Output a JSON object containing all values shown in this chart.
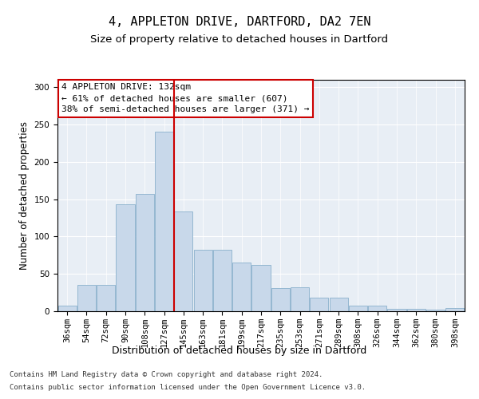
{
  "title": "4, APPLETON DRIVE, DARTFORD, DA2 7EN",
  "subtitle": "Size of property relative to detached houses in Dartford",
  "xlabel": "Distribution of detached houses by size in Dartford",
  "ylabel": "Number of detached properties",
  "footnote1": "Contains HM Land Registry data © Crown copyright and database right 2024.",
  "footnote2": "Contains public sector information licensed under the Open Government Licence v3.0.",
  "annotation_line1": "4 APPLETON DRIVE: 132sqm",
  "annotation_line2": "← 61% of detached houses are smaller (607)",
  "annotation_line3": "38% of semi-detached houses are larger (371) →",
  "bar_color": "#c8d8ea",
  "bar_edge_color": "#8ab0cc",
  "vline_color": "#cc0000",
  "background_color": "#e8eef5",
  "categories": [
    "36sqm",
    "54sqm",
    "72sqm",
    "90sqm",
    "108sqm",
    "127sqm",
    "145sqm",
    "163sqm",
    "181sqm",
    "199sqm",
    "217sqm",
    "235sqm",
    "253sqm",
    "271sqm",
    "289sqm",
    "308sqm",
    "326sqm",
    "344sqm",
    "362sqm",
    "380sqm",
    "398sqm"
  ],
  "values": [
    8,
    35,
    35,
    143,
    157,
    241,
    134,
    82,
    82,
    65,
    62,
    31,
    32,
    18,
    18,
    7,
    7,
    3,
    3,
    2,
    4
  ],
  "vline_bin_index": 5,
  "ylim": [
    0,
    310
  ],
  "yticks": [
    0,
    50,
    100,
    150,
    200,
    250,
    300
  ],
  "title_fontsize": 11,
  "subtitle_fontsize": 9.5,
  "xlabel_fontsize": 9,
  "ylabel_fontsize": 8.5,
  "tick_fontsize": 7.5,
  "annotation_fontsize": 8,
  "footnote_fontsize": 6.5
}
